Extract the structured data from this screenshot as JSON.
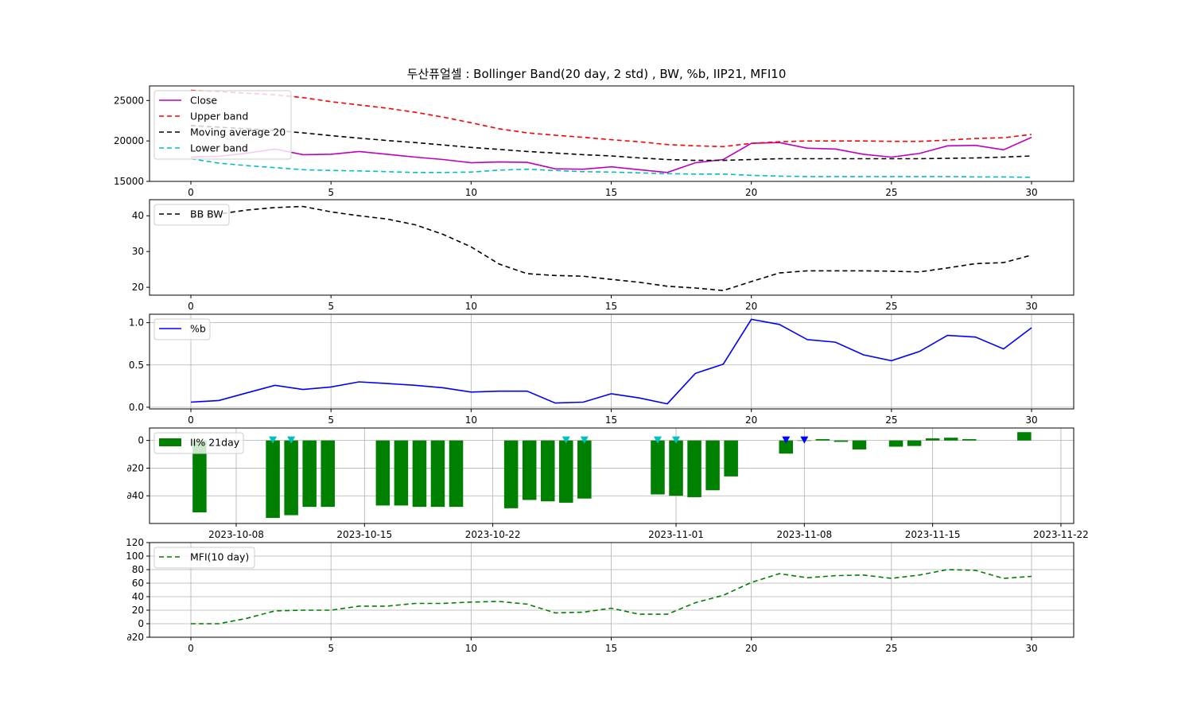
{
  "title": "두산퓨얼셀 : Bollinger Band(20 day, 2 std) , BW, %b, IIP21, MFI10",
  "chart_data": [
    {
      "id": "bollinger",
      "type": "line",
      "x": [
        0,
        1,
        2,
        3,
        4,
        5,
        6,
        7,
        8,
        9,
        10,
        11,
        12,
        13,
        14,
        15,
        16,
        17,
        18,
        19,
        20,
        21,
        22,
        23,
        24,
        25,
        26,
        27,
        28,
        29,
        30
      ],
      "ylim": [
        15000,
        26800
      ],
      "yticks": [
        15000,
        20000,
        25000
      ],
      "xticks": [
        0,
        5,
        10,
        15,
        20,
        25,
        30
      ],
      "grid": false,
      "legend_position": "upper-left",
      "series": [
        {
          "name": "Close",
          "color": "#bf00bf",
          "dash": "solid",
          "values": [
            18000,
            18100,
            18500,
            19000,
            18300,
            18350,
            18700,
            18350,
            18000,
            17700,
            17300,
            17400,
            17350,
            16550,
            16500,
            16800,
            16450,
            16100,
            17300,
            17700,
            19700,
            19800,
            19100,
            19000,
            18350,
            18000,
            18450,
            19400,
            19450,
            18900,
            20450
          ]
        },
        {
          "name": "Upper band",
          "color": "#ff0000",
          "dash": "dashed",
          "values": [
            26250,
            26100,
            25900,
            25700,
            25350,
            24850,
            24450,
            24050,
            23550,
            22950,
            22250,
            21500,
            21000,
            20700,
            20450,
            20150,
            19900,
            19550,
            19400,
            19300,
            19700,
            19900,
            20000,
            20000,
            20000,
            19950,
            19950,
            20100,
            20300,
            20400,
            20800
          ]
        },
        {
          "name": "Moving average 20",
          "color": "#000000",
          "dash": "dashed",
          "values": [
            21900,
            21700,
            21500,
            21300,
            21000,
            20650,
            20350,
            20050,
            19800,
            19500,
            19200,
            18950,
            18700,
            18500,
            18300,
            18150,
            17900,
            17700,
            17600,
            17600,
            17700,
            17800,
            17800,
            17800,
            17800,
            17800,
            17800,
            17850,
            17900,
            18000,
            18150
          ]
        },
        {
          "name": "Lower band",
          "color": "#00bfbf",
          "dash": "dashed",
          "values": [
            17800,
            17250,
            16950,
            16700,
            16450,
            16350,
            16300,
            16200,
            16100,
            16100,
            16150,
            16400,
            16500,
            16350,
            16200,
            16150,
            16050,
            15950,
            15900,
            15900,
            15750,
            15650,
            15600,
            15600,
            15600,
            15600,
            15600,
            15600,
            15550,
            15550,
            15500
          ]
        }
      ]
    },
    {
      "id": "bandwidth",
      "type": "line",
      "x": [
        0,
        1,
        2,
        3,
        4,
        5,
        6,
        7,
        8,
        9,
        10,
        11,
        12,
        13,
        14,
        15,
        16,
        17,
        18,
        19,
        20,
        21,
        22,
        23,
        24,
        25,
        26,
        27,
        28,
        29,
        30
      ],
      "ylim": [
        17.8,
        44.5
      ],
      "yticks": [
        20,
        30,
        40
      ],
      "xticks": [
        0,
        5,
        10,
        15,
        20,
        25,
        30
      ],
      "grid": false,
      "legend_position": "upper-left",
      "series": [
        {
          "name": "BB BW",
          "color": "#000000",
          "dash": "dashed",
          "values": [
            39.9,
            40.5,
            41.6,
            42.3,
            42.6,
            41.1,
            40.0,
            39.1,
            37.5,
            34.8,
            31.3,
            26.5,
            23.8,
            23.3,
            23.1,
            22.2,
            21.4,
            20.3,
            19.8,
            19.1,
            21.6,
            24.0,
            24.6,
            24.6,
            24.6,
            24.5,
            24.3,
            25.4,
            26.6,
            26.9,
            29.0
          ]
        }
      ]
    },
    {
      "id": "percent-b",
      "type": "line",
      "x": [
        0,
        1,
        2,
        3,
        4,
        5,
        6,
        7,
        8,
        9,
        10,
        11,
        12,
        13,
        14,
        15,
        16,
        17,
        18,
        19,
        20,
        21,
        22,
        23,
        24,
        25,
        26,
        27,
        28,
        29,
        30
      ],
      "ylim": [
        -0.02,
        1.1
      ],
      "yticks": [
        0.0,
        0.5,
        1.0
      ],
      "xticks": [
        0,
        5,
        10,
        15,
        20,
        25,
        30
      ],
      "grid": true,
      "legend_position": "upper-left",
      "series": [
        {
          "name": "%b",
          "color": "#0000ff",
          "dash": "solid",
          "values": [
            0.06,
            0.08,
            0.17,
            0.26,
            0.21,
            0.24,
            0.3,
            0.28,
            0.26,
            0.23,
            0.18,
            0.19,
            0.19,
            0.05,
            0.06,
            0.16,
            0.11,
            0.04,
            0.4,
            0.51,
            1.04,
            0.98,
            0.8,
            0.77,
            0.62,
            0.55,
            0.66,
            0.85,
            0.83,
            0.69,
            0.94
          ]
        }
      ]
    },
    {
      "id": "iip21",
      "type": "bar",
      "xticks": [
        "2023-10-08",
        "2023-10-15",
        "2023-10-22",
        "2023-11-01",
        "2023-11-08",
        "2023-11-15",
        "2023-11-22"
      ],
      "xtick_days": [
        7,
        14,
        21,
        31,
        38,
        45,
        52
      ],
      "ylim": [
        -60,
        9
      ],
      "yticks": [
        0,
        -20,
        -40
      ],
      "ytick_labels": [
        "0",
        "∂20",
        "∂40"
      ],
      "grid": true,
      "legend_position": "upper-left",
      "series": [
        {
          "name": "II% 21day",
          "color": "#008000",
          "days": [
            5,
            9,
            10,
            11,
            12,
            15,
            16,
            17,
            18,
            19,
            22,
            23,
            24,
            25,
            26,
            30,
            31,
            32,
            33,
            34,
            37,
            38,
            39,
            40,
            41,
            43,
            44,
            45,
            46,
            47,
            50
          ],
          "values": [
            -52,
            -56,
            -54,
            -48,
            -48,
            -47,
            -47,
            -48,
            -48,
            -48,
            -49,
            -43,
            -44,
            -45,
            -42,
            -39,
            -40,
            -41,
            -36,
            -26,
            -9.5,
            0,
            1,
            -1,
            -6.5,
            -4.5,
            -4,
            1.5,
            2,
            1,
            6
          ]
        }
      ],
      "markers": [
        {
          "color": "#00bfbf",
          "days": [
            9,
            10,
            25,
            26,
            30,
            31
          ]
        },
        {
          "color": "#0000ff",
          "days": [
            37,
            38
          ]
        }
      ]
    },
    {
      "id": "mfi10",
      "type": "line",
      "x": [
        0,
        1,
        2,
        3,
        4,
        5,
        6,
        7,
        8,
        9,
        10,
        11,
        12,
        13,
        14,
        15,
        16,
        17,
        18,
        19,
        20,
        21,
        22,
        23,
        24,
        25,
        26,
        27,
        28,
        29,
        30
      ],
      "ylim": [
        -20,
        120
      ],
      "yticks": [
        -20,
        0,
        20,
        40,
        60,
        80,
        100,
        120
      ],
      "ytick_labels": [
        "∂20",
        "0",
        "20",
        "40",
        "60",
        "80",
        "100",
        "120"
      ],
      "xticks": [
        0,
        5,
        10,
        15,
        20,
        25,
        30
      ],
      "grid": true,
      "legend_position": "upper-left",
      "series": [
        {
          "name": "MFI(10 day)",
          "color": "#008000",
          "dash": "dashed",
          "values": [
            0,
            0,
            8,
            19,
            20,
            20,
            26,
            26,
            30,
            30,
            32,
            33,
            29,
            16,
            17,
            23,
            14,
            14,
            31,
            42,
            61,
            74,
            68,
            71,
            72,
            67,
            72,
            80,
            79,
            67,
            70
          ]
        }
      ]
    }
  ]
}
